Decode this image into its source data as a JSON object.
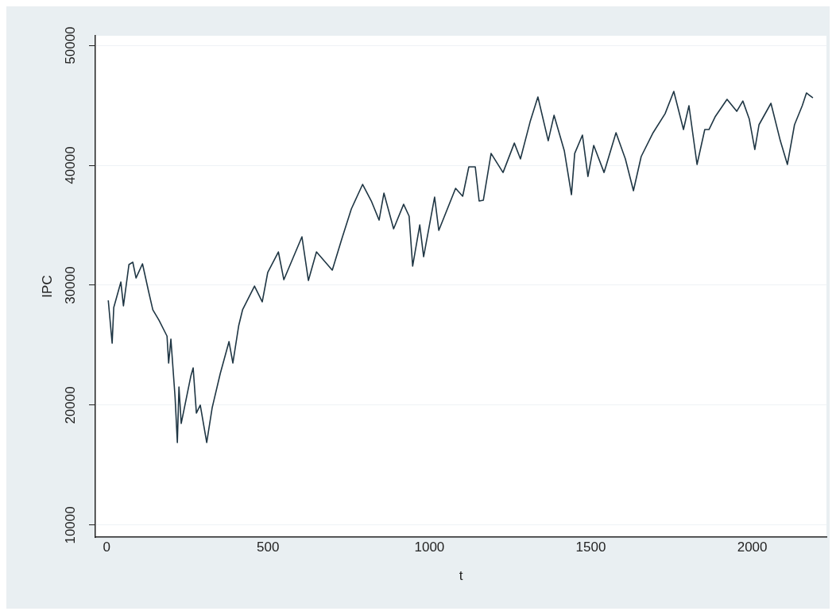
{
  "chart_data": {
    "type": "line",
    "xlabel": "t",
    "ylabel": "IPC",
    "x": [
      5,
      17,
      22,
      44,
      52,
      69,
      81,
      91,
      111,
      130,
      143,
      162,
      187,
      192,
      199,
      212,
      219,
      224,
      231,
      261,
      268,
      278,
      290,
      310,
      327,
      352,
      379,
      391,
      409,
      421,
      458,
      482,
      499,
      532,
      549,
      605,
      625,
      650,
      699,
      729,
      758,
      793,
      820,
      844,
      859,
      889,
      920,
      937,
      948,
      970,
      982,
      1016,
      1029,
      1081,
      1103,
      1122,
      1142,
      1154,
      1167,
      1191,
      1228,
      1263,
      1282,
      1312,
      1336,
      1368,
      1386,
      1418,
      1440,
      1450,
      1474,
      1491,
      1509,
      1541,
      1578,
      1607,
      1632,
      1656,
      1693,
      1730,
      1757,
      1787,
      1804,
      1829,
      1853,
      1866,
      1885,
      1922,
      1952,
      1971,
      1991,
      2008,
      2021,
      2058,
      2087,
      2109,
      2131,
      2155,
      2168,
      2188
    ],
    "series": [
      {
        "color": "#1f3644",
        "values": [
          28740,
          25170,
          28150,
          30270,
          28280,
          31720,
          31920,
          30600,
          31790,
          29470,
          27950,
          27090,
          25760,
          23510,
          25500,
          20660,
          16890,
          21520,
          18480,
          22450,
          23110,
          19340,
          20000,
          16890,
          19800,
          22650,
          25300,
          23510,
          26620,
          27950,
          29930,
          28610,
          31060,
          32780,
          30460,
          34040,
          30400,
          32780,
          31260,
          33910,
          36360,
          38410,
          37020,
          35430,
          37680,
          34700,
          36750,
          35760,
          31590,
          35030,
          32380,
          37350,
          34570,
          38080,
          37420,
          39870,
          39870,
          37020,
          37090,
          40990,
          39400,
          41850,
          40530,
          43640,
          45700,
          42050,
          44170,
          41190,
          37550,
          40990,
          42520,
          39070,
          41660,
          39400,
          42720,
          40530,
          37880,
          40730,
          42720,
          44300,
          46160,
          42980,
          44970,
          40070,
          42980,
          42980,
          44040,
          45500,
          44500,
          45360,
          43840,
          41320,
          43380,
          45170,
          42050,
          40070,
          43380,
          44970,
          46030,
          45630
        ]
      }
    ],
    "xlim": [
      -35,
      2230
    ],
    "ylim": [
      9000,
      50800
    ],
    "xticks": [
      0,
      500,
      1000,
      1500,
      2000
    ],
    "yticks": [
      10000,
      20000,
      30000,
      40000,
      50000
    ],
    "grid": "y",
    "marker": "none",
    "line_style": "solid"
  }
}
